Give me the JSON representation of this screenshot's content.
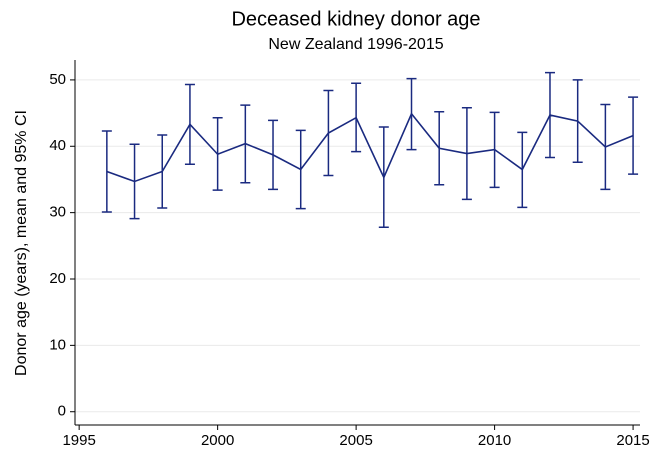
{
  "chart_data": {
    "type": "line",
    "title": "Deceased kidney donor age",
    "subtitle": "New Zealand 1996-2015",
    "y_label": "Donor age (years), mean and 95% CI",
    "x": [
      1996,
      1997,
      1998,
      1999,
      2000,
      2001,
      2002,
      2003,
      2004,
      2005,
      2006,
      2007,
      2008,
      2009,
      2010,
      2011,
      2012,
      2013,
      2014,
      2015
    ],
    "series": [
      {
        "color": "#1a2a80",
        "values": [
          36.2,
          34.7,
          36.2,
          43.3,
          38.8,
          40.4,
          38.7,
          36.5,
          42.0,
          44.3,
          35.3,
          44.9,
          39.7,
          38.9,
          39.5,
          36.5,
          44.7,
          43.8,
          39.9,
          41.6
        ],
        "ci_lower": [
          30.1,
          29.1,
          30.7,
          37.3,
          33.4,
          34.5,
          33.5,
          30.6,
          35.6,
          39.2,
          27.8,
          39.5,
          34.2,
          32.0,
          33.8,
          30.8,
          38.3,
          37.6,
          33.5,
          35.8
        ],
        "ci_upper": [
          42.3,
          40.3,
          41.7,
          49.3,
          44.3,
          46.2,
          43.9,
          42.4,
          48.4,
          49.5,
          42.9,
          50.2,
          45.2,
          45.8,
          45.1,
          42.1,
          51.1,
          50.0,
          46.3,
          47.4
        ]
      }
    ],
    "xlim": [
      1994.85,
      2015.25
    ],
    "xticks": [
      1995,
      2000,
      2005,
      2010,
      2015
    ],
    "ylim": [
      -2,
      53
    ],
    "yticks": [
      0,
      10,
      20,
      30,
      40,
      50
    ],
    "grid": true
  }
}
